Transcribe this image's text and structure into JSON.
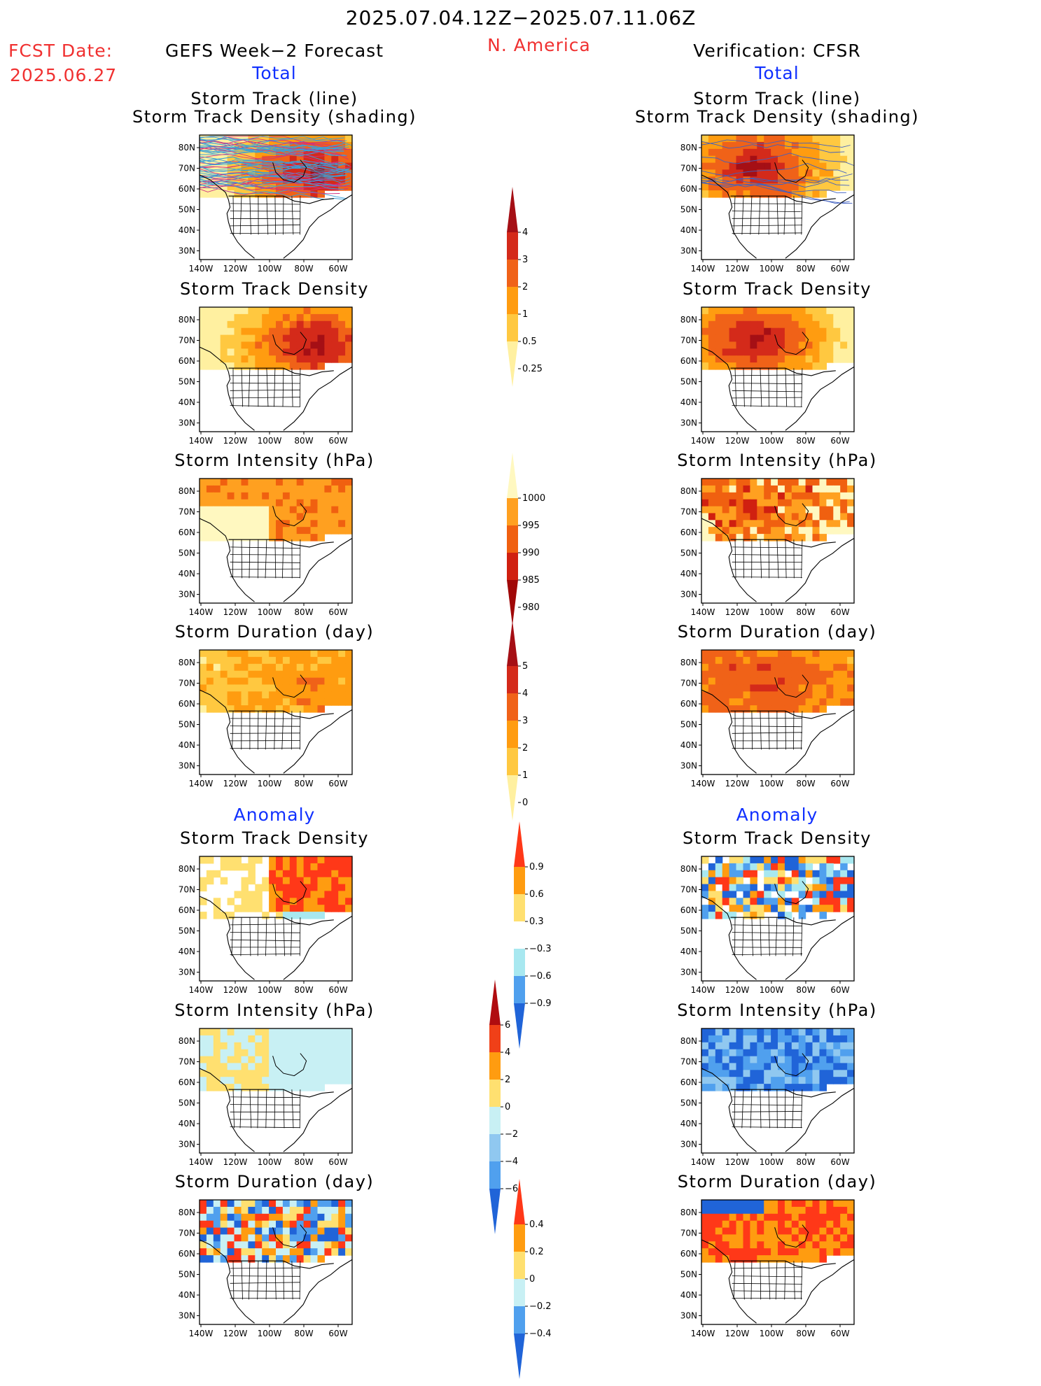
{
  "header": {
    "period": "2025.07.04.12Z−2025.07.11.06Z",
    "region": "N. America",
    "fcst_label": "FCST Date:",
    "fcst_date": "2025.06.27",
    "left_title": "GEFS Week−2 Forecast",
    "right_title": "Verification: CFSR",
    "total_left": "Total",
    "total_right": "Total",
    "anomaly_left": "Anomaly",
    "anomaly_right": "Anomaly"
  },
  "axes": {
    "lat_ticks": [
      "80N",
      "70N",
      "60N",
      "50N",
      "40N",
      "30N"
    ],
    "lon_ticks": [
      "140W",
      "120W",
      "100W",
      "80W",
      "60W"
    ]
  },
  "panels": {
    "l_track": [
      "Storm Track (line)",
      "Storm Track Density (shading)"
    ],
    "l_density": [
      "Storm Track Density"
    ],
    "l_intensity": [
      "Storm Intensity (hPa)"
    ],
    "l_duration": [
      "Storm Duration (day)"
    ],
    "l_a_density": [
      "Storm Track Density"
    ],
    "l_a_intensity": [
      "Storm Intensity (hPa)"
    ],
    "l_a_duration": [
      "Storm Duration (day)"
    ],
    "r_track": [
      "Storm Track (line)",
      "Storm Track Density (shading)"
    ],
    "r_density": [
      "Storm Track Density"
    ],
    "r_intensity": [
      "Storm Intensity (hPa)"
    ],
    "r_duration": [
      "Storm Duration (day)"
    ],
    "r_a_density": [
      "Storm Track Density"
    ],
    "r_a_intensity": [
      "Storm Intensity (hPa)"
    ],
    "r_a_duration": [
      "Storm Duration (day)"
    ]
  },
  "colorbars": {
    "density": {
      "labels": [
        "4",
        "3",
        "2",
        "1",
        "0.5",
        "0.25"
      ],
      "colors": [
        "#a50f15",
        "#d42a1a",
        "#f06218",
        "#ff9c10",
        "#ffc840",
        "#fff0a0"
      ]
    },
    "intensity": {
      "labels": [
        "1000",
        "995",
        "990",
        "985",
        "980"
      ],
      "colors": [
        "#fff8c0",
        "#ffa020",
        "#f06010",
        "#d02010",
        "#a00808"
      ]
    },
    "duration": {
      "labels": [
        "5",
        "4",
        "3",
        "2",
        "1",
        "0"
      ],
      "colors": [
        "#a50f15",
        "#d42a1a",
        "#f06218",
        "#ff9c10",
        "#ffc840",
        "#fff0a0"
      ]
    },
    "anom_density": {
      "labels": [
        "0.9",
        "0.6",
        "0.3",
        "−0.3",
        "−0.6",
        "−0.9"
      ],
      "colors": [
        "#ff3818",
        "#ff9c10",
        "#ffe070",
        "#ffffff",
        "#a8e8f0",
        "#50a0ee",
        "#2064d8"
      ]
    },
    "anom_intensity": {
      "labels": [
        "6",
        "4",
        "2",
        "0",
        "−2",
        "−4",
        "−6"
      ],
      "colors": [
        "#b00c10",
        "#f04018",
        "#ff9c10",
        "#ffe070",
        "#c8f0f4",
        "#90c8f0",
        "#50a0ee",
        "#2064d8"
      ]
    },
    "anom_duration": {
      "labels": [
        "0.4",
        "0.2",
        "0",
        "−0.2",
        "−0.4"
      ],
      "colors": [
        "#ff3818",
        "#ff9c10",
        "#ffe070",
        "#c8f0f4",
        "#50a0ee",
        "#2064d8"
      ]
    }
  }
}
